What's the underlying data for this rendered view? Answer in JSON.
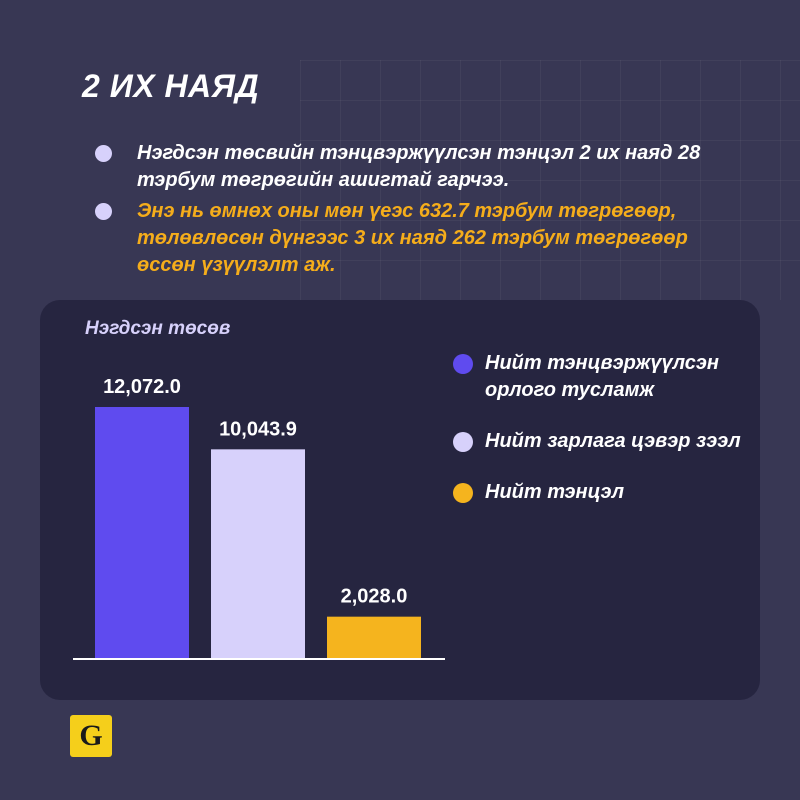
{
  "heading": "2 ИХ НАЯД",
  "bullets": [
    {
      "text": "Нэгдсэн төсвийн тэнцвэржүүлсэн тэнцэл 2 их наяд 28 тэрбум төгрөгийн ашигтай гарчээ.",
      "color": "#ffffff"
    },
    {
      "text": "Энэ нь өмнөх оны мөн үеэс 632.7 тэрбум төгрөгөөр, төлөвлөсөн дүнгээс 3 их наяд 262 тэрбум төгрөгөөр өссөн үзүүлэлт аж.",
      "color": "#f5ad1b"
    }
  ],
  "logo": {
    "letter": "G"
  },
  "chart_data": {
    "type": "bar",
    "title": "Нэгдсэн төсөв",
    "categories": [
      "Нийт тэнцвэржүүлсэн орлого тусламж",
      "Нийт зарлага цэвэр зээл",
      "Нийт тэнцэл"
    ],
    "values": [
      12072.0,
      10043.9,
      2028.0
    ],
    "value_labels": [
      "12,072.0",
      "10,043.9",
      "2,028.0"
    ],
    "colors": [
      "#5f4bef",
      "#d7d1fb",
      "#f5b41e"
    ],
    "ylim": [
      0,
      12072.0
    ],
    "grid": false,
    "legend": "right"
  },
  "colors": {
    "background": "#383754",
    "card": "#262540",
    "accent": "#f5ad1b",
    "baseline": "#ffffff"
  }
}
